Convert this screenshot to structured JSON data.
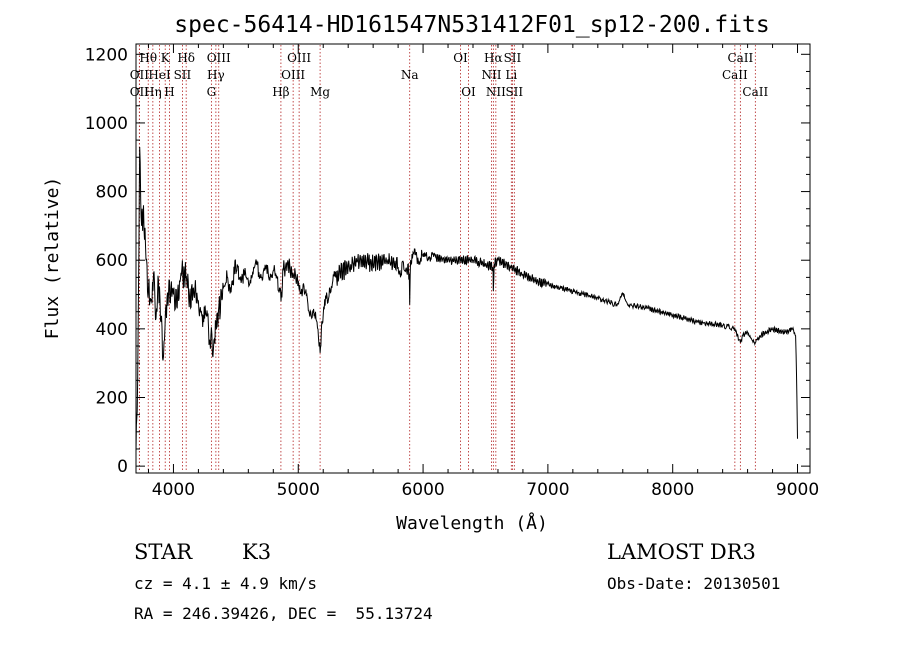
{
  "chart_data": {
    "type": "line",
    "title": "spec-56414-HD161547N531412F01_sp12-200.fits",
    "xlabel": "Wavelength (Å)",
    "ylabel": "Flux (relative)",
    "xlim": [
      3700,
      9100
    ],
    "ylim": [
      -20,
      1230
    ],
    "xticks": [
      4000,
      5000,
      6000,
      7000,
      8000,
      9000
    ],
    "yticks": [
      0,
      200,
      400,
      600,
      800,
      1000,
      1200
    ],
    "grid": false,
    "series": [
      {
        "name": "flux",
        "x": [
          3700,
          3710,
          3720,
          3730,
          3745,
          3760,
          3780,
          3800,
          3820,
          3840,
          3860,
          3880,
          3900,
          3920,
          3940,
          3960,
          3980,
          4000,
          4030,
          4060,
          4100,
          4130,
          4160,
          4200,
          4250,
          4300,
          4320,
          4340,
          4360,
          4400,
          4450,
          4500,
          4550,
          4600,
          4650,
          4700,
          4750,
          4800,
          4850,
          4862,
          4880,
          4920,
          4960,
          5000,
          5050,
          5100,
          5150,
          5175,
          5185,
          5200,
          5250,
          5300,
          5400,
          5500,
          5600,
          5700,
          5800,
          5850,
          5890,
          5893,
          5900,
          5950,
          6000,
          6050,
          6100,
          6200,
          6300,
          6400,
          6500,
          6560,
          6563,
          6570,
          6600,
          6700,
          6800,
          6900,
          7000,
          7200,
          7400,
          7550,
          7600,
          7650,
          7800,
          8000,
          8200,
          8400,
          8498,
          8542,
          8560,
          8600,
          8662,
          8700,
          8800,
          8900,
          8960,
          8985,
          8995,
          9000
        ],
        "values": [
          40,
          160,
          520,
          930,
          700,
          760,
          600,
          520,
          480,
          560,
          430,
          540,
          420,
          320,
          470,
          500,
          520,
          500,
          460,
          560,
          550,
          500,
          520,
          480,
          430,
          380,
          340,
          420,
          450,
          520,
          530,
          560,
          560,
          540,
          580,
          560,
          560,
          570,
          520,
          480,
          570,
          590,
          560,
          540,
          500,
          450,
          420,
          330,
          400,
          440,
          520,
          550,
          580,
          600,
          590,
          600,
          580,
          570,
          560,
          470,
          600,
          610,
          610,
          610,
          610,
          600,
          600,
          600,
          590,
          580,
          510,
          590,
          600,
          580,
          560,
          540,
          530,
          510,
          490,
          470,
          500,
          470,
          460,
          440,
          420,
          410,
          400,
          360,
          380,
          390,
          360,
          380,
          400,
          390,
          400,
          380,
          200,
          80
        ]
      }
    ],
    "lines": [
      {
        "name": "OII",
        "x": 3727,
        "row": 2
      },
      {
        "name": "OII",
        "x": 3727,
        "row": 3
      },
      {
        "name": "Hθ",
        "x": 3798,
        "row": 1
      },
      {
        "name": "Hη",
        "x": 3835,
        "row": 3
      },
      {
        "name": "HeI",
        "x": 3889,
        "row": 2
      },
      {
        "name": "K",
        "x": 3934,
        "row": 1
      },
      {
        "name": "H",
        "x": 3968,
        "row": 3
      },
      {
        "name": "SII",
        "x": 4072,
        "row": 2
      },
      {
        "name": "Hδ",
        "x": 4102,
        "row": 1
      },
      {
        "name": "G",
        "x": 4304,
        "row": 3
      },
      {
        "name": "Hγ",
        "x": 4340,
        "row": 2
      },
      {
        "name": "OIII",
        "x": 4363,
        "row": 1
      },
      {
        "name": "Hβ",
        "x": 4861,
        "row": 3
      },
      {
        "name": "OIII",
        "x": 4959,
        "row": 2
      },
      {
        "name": "OIII",
        "x": 5007,
        "row": 1
      },
      {
        "name": "Mg",
        "x": 5175,
        "row": 3
      },
      {
        "name": "Na",
        "x": 5893,
        "row": 2
      },
      {
        "name": "OI",
        "x": 6300,
        "row": 1
      },
      {
        "name": "OI",
        "x": 6364,
        "row": 3
      },
      {
        "name": "NII",
        "x": 6548,
        "row": 2
      },
      {
        "name": "Hα",
        "x": 6563,
        "row": 1
      },
      {
        "name": "NII",
        "x": 6583,
        "row": 3
      },
      {
        "name": "Li",
        "x": 6707,
        "row": 2
      },
      {
        "name": "SII",
        "x": 6716,
        "row": 1
      },
      {
        "name": "SII",
        "x": 6731,
        "row": 3
      },
      {
        "name": "CaII",
        "x": 8498,
        "row": 2
      },
      {
        "name": "CaII",
        "x": 8542,
        "row": 1
      },
      {
        "name": "CaII",
        "x": 8662,
        "row": 3
      }
    ]
  },
  "info": {
    "class": "STAR",
    "subclass": "K3",
    "survey": "LAMOST DR3",
    "cz": "cz = 4.1 ± 4.9 km/s",
    "obs_date": "Obs-Date: 20130501",
    "radec": "RA = 246.39426, DEC =  55.13724"
  },
  "colors": {
    "axis": "#000000",
    "spectrum": "#000000",
    "line_marker": "#b22222",
    "background": "#ffffff"
  }
}
